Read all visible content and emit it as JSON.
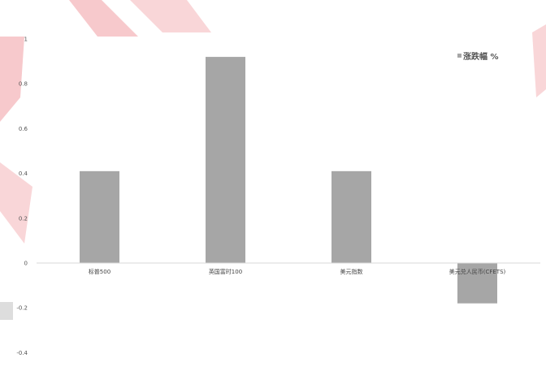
{
  "chart_data": {
    "type": "bar",
    "categories": [
      "标普500",
      "英国富时100",
      "美元指数",
      "美元兑人民币(CFETS)"
    ],
    "series": [
      {
        "name": "涨跌幅 %",
        "values": [
          0.41,
          0.92,
          0.41,
          -0.18
        ]
      }
    ],
    "y_ticks": [
      "1",
      "0.8",
      "0.6",
      "0.4",
      "0.2",
      "0",
      "-0.2",
      "-0.4"
    ],
    "ylim": [
      -0.4,
      1
    ],
    "grid": false,
    "legend": "top-right",
    "bar_color": "#a6a6a6",
    "axis_color": "#d9d9d9"
  }
}
